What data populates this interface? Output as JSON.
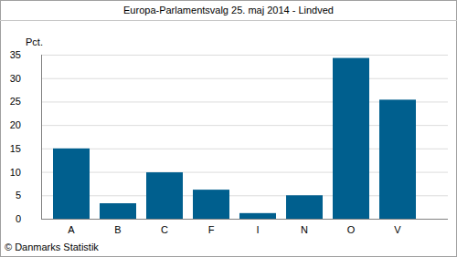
{
  "chart_data": {
    "type": "bar",
    "title": "Europa-Parlamentsvalg 25. maj 2014 - Lindved",
    "y_label": "Pct.",
    "source": "© Danmarks Statistik",
    "categories": [
      "A",
      "B",
      "C",
      "F",
      "I",
      "N",
      "O",
      "V"
    ],
    "values": [
      15.0,
      3.3,
      9.9,
      6.2,
      1.2,
      5.0,
      34.3,
      25.4
    ],
    "color": "#005f8e",
    "ylim": [
      0,
      35
    ],
    "yticks": [
      0,
      5,
      10,
      15,
      20,
      25,
      30,
      35
    ],
    "grid": true
  }
}
